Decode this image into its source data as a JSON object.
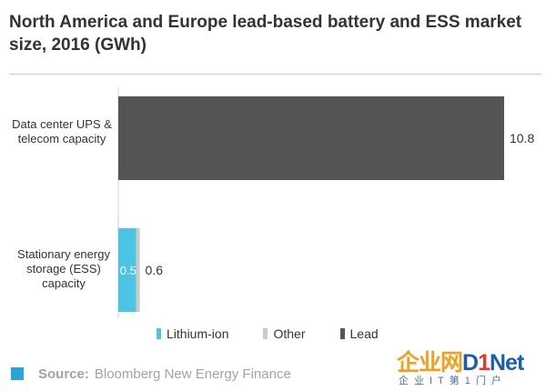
{
  "title": "North America and Europe lead-based battery and ESS market size, 2016 (GWh)",
  "chart_data": {
    "type": "bar",
    "orientation": "horizontal",
    "stacked": true,
    "title": "North America and Europe lead-based battery and ESS market size, 2016 (GWh)",
    "categories": [
      "Data center UPS & telecom capacity",
      "Stationary energy storage (ESS) capacity"
    ],
    "series": [
      {
        "name": "Lithium-ion",
        "color": "#4dc3e6",
        "values": [
          0,
          0.5
        ],
        "labels": [
          "",
          "0.5"
        ]
      },
      {
        "name": "Other",
        "color": "#c9c9c9",
        "values": [
          0,
          0.1
        ],
        "labels": [
          "",
          ""
        ]
      },
      {
        "name": "Lead",
        "color": "#555555",
        "values": [
          10.8,
          0
        ],
        "labels": [
          "",
          ""
        ]
      }
    ],
    "totals": [
      10.8,
      0.6
    ],
    "total_labels": [
      "10.8",
      "0.6"
    ],
    "xlim": [
      0,
      10.8
    ],
    "grid": false,
    "legend": "bottom"
  },
  "legend": {
    "items": [
      {
        "name": "Lithium-ion",
        "color": "#4dc3e6"
      },
      {
        "name": "Other",
        "color": "#c9c9c9"
      },
      {
        "name": "Lead",
        "color": "#555555"
      }
    ]
  },
  "source": {
    "key": "Source:",
    "text": "Bloomberg New Energy Finance",
    "accent": "#2aa4d8"
  },
  "watermark": {
    "main_a": "企业网",
    "main_b": "D",
    "main_c": "1",
    "main_d": "Net",
    "sub": "企业IT第1门户",
    "color_a": "#f0a020",
    "color_b": "#e23b2b",
    "color_d": "#1b5eb0"
  }
}
